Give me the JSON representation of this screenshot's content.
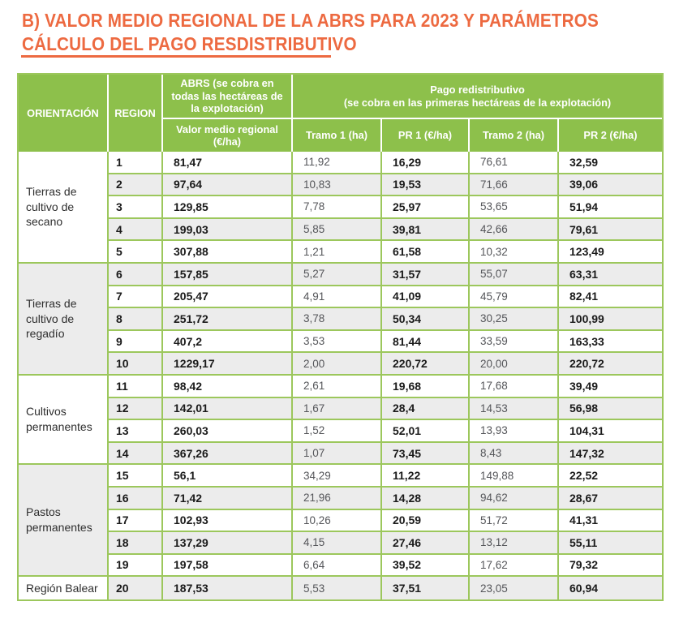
{
  "title": {
    "line1": "B) VALOR MEDIO REGIONAL DE LA ABRS PARA 2023 Y PARÁMETROS",
    "line2": "CÁLCULO DEL PAGO RESDISTRIBUTIVO"
  },
  "colors": {
    "green": "#8DC04B",
    "border_green": "#9CC75C",
    "row_gray": "#ECECEC",
    "orange": "#ED6A41",
    "text_dark": "#1A1A1A",
    "text_gray": "#55565A"
  },
  "table": {
    "header": {
      "orientacion": "ORIENTACIÓN",
      "region": "REGION",
      "abrs_group": "ABRS (se cobra en todas las hectáreas de la explotación)",
      "valor_sub": "Valor medio regional (€/ha)",
      "pago_title": "Pago redistributivo",
      "pago_subtitle": "(se cobra en las primeras hectáreas de la explotación)",
      "tramo1": "Tramo 1 (ha)",
      "pr1": "PR 1 (€/ha)",
      "tramo2": "Tramo 2 (ha)",
      "pr2": "PR 2 (€/ha)"
    },
    "groups": [
      {
        "label": "Tierras de cultivo de secano",
        "rows": [
          {
            "region": "1",
            "valor": "81,47",
            "tramo1": "11,92",
            "pr1": "16,29",
            "tramo2": "76,61",
            "pr2": "32,59"
          },
          {
            "region": "2",
            "valor": "97,64",
            "tramo1": "10,83",
            "pr1": "19,53",
            "tramo2": "71,66",
            "pr2": "39,06"
          },
          {
            "region": "3",
            "valor": "129,85",
            "tramo1": "7,78",
            "pr1": "25,97",
            "tramo2": "53,65",
            "pr2": "51,94"
          },
          {
            "region": "4",
            "valor": "199,03",
            "tramo1": "5,85",
            "pr1": "39,81",
            "tramo2": "42,66",
            "pr2": "79,61"
          },
          {
            "region": "5",
            "valor": "307,88",
            "tramo1": "1,21",
            "pr1": "61,58",
            "tramo2": "10,32",
            "pr2": "123,49"
          }
        ]
      },
      {
        "label": "Tierras de cultivo de regadío",
        "rows": [
          {
            "region": "6",
            "valor": "157,85",
            "tramo1": "5,27",
            "pr1": "31,57",
            "tramo2": "55,07",
            "pr2": "63,31"
          },
          {
            "region": "7",
            "valor": "205,47",
            "tramo1": "4,91",
            "pr1": "41,09",
            "tramo2": "45,79",
            "pr2": "82,41"
          },
          {
            "region": "8",
            "valor": "251,72",
            "tramo1": "3,78",
            "pr1": "50,34",
            "tramo2": "30,25",
            "pr2": "100,99"
          },
          {
            "region": "9",
            "valor": "407,2",
            "tramo1": "3,53",
            "pr1": "81,44",
            "tramo2": "33,59",
            "pr2": "163,33"
          },
          {
            "region": "10",
            "valor": "1229,17",
            "tramo1": "2,00",
            "pr1": "220,72",
            "tramo2": "20,00",
            "pr2": "220,72"
          }
        ]
      },
      {
        "label": "Cultivos permanentes",
        "rows": [
          {
            "region": "11",
            "valor": "98,42",
            "tramo1": "2,61",
            "pr1": "19,68",
            "tramo2": "17,68",
            "pr2": "39,49"
          },
          {
            "region": "12",
            "valor": "142,01",
            "tramo1": "1,67",
            "pr1": "28,4",
            "tramo2": "14,53",
            "pr2": "56,98"
          },
          {
            "region": "13",
            "valor": "260,03",
            "tramo1": "1,52",
            "pr1": "52,01",
            "tramo2": "13,93",
            "pr2": "104,31"
          },
          {
            "region": "14",
            "valor": "367,26",
            "tramo1": "1,07",
            "pr1": "73,45",
            "tramo2": "8,43",
            "pr2": "147,32"
          }
        ]
      },
      {
        "label": "Pastos permanentes",
        "rows": [
          {
            "region": "15",
            "valor": "56,1",
            "tramo1": "34,29",
            "pr1": "11,22",
            "tramo2": "149,88",
            "pr2": "22,52"
          },
          {
            "region": "16",
            "valor": "71,42",
            "tramo1": "21,96",
            "pr1": "14,28",
            "tramo2": "94,62",
            "pr2": "28,67"
          },
          {
            "region": "17",
            "valor": "102,93",
            "tramo1": "10,26",
            "pr1": "20,59",
            "tramo2": "51,72",
            "pr2": "41,31"
          },
          {
            "region": "18",
            "valor": "137,29",
            "tramo1": "4,15",
            "pr1": "27,46",
            "tramo2": "13,12",
            "pr2": "55,11"
          },
          {
            "region": "19",
            "valor": "197,58",
            "tramo1": "6,64",
            "pr1": "39,52",
            "tramo2": "17,62",
            "pr2": "79,32"
          }
        ]
      },
      {
        "label": "Región Balear",
        "rows": [
          {
            "region": "20",
            "valor": "187,53",
            "tramo1": "5,53",
            "pr1": "37,51",
            "tramo2": "23,05",
            "pr2": "60,94"
          }
        ]
      }
    ]
  }
}
